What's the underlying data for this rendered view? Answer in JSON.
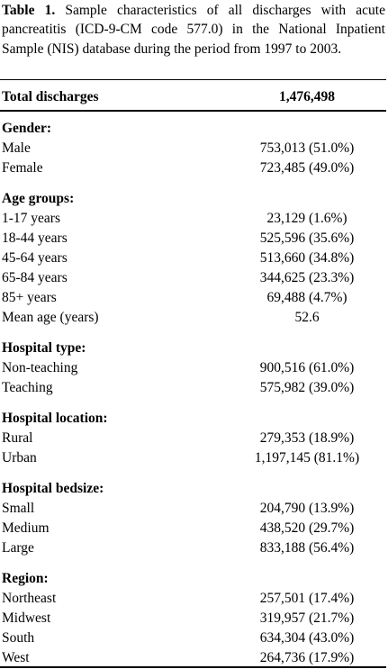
{
  "caption": {
    "label": "Table 1.",
    "text": "Sample characteristics of all discharges with acute pancreatitis (ICD-9-CM code 577.0) in the National Inpatient Sample (NIS) database during the period from 1997 to 2003."
  },
  "table": {
    "header": [
      "Total discharges",
      "1,476,498"
    ],
    "sections": [
      {
        "title": "Gender:",
        "rows": [
          [
            "Male",
            "753,013 (51.0%)"
          ],
          [
            "Female",
            "723,485 (49.0%)"
          ]
        ]
      },
      {
        "title": "Age groups:",
        "rows": [
          [
            "1-17 years",
            "23,129 (1.6%)"
          ],
          [
            "18-44 years",
            "525,596 (35.6%)"
          ],
          [
            "45-64 years",
            "513,660 (34.8%)"
          ],
          [
            "65-84 years",
            "344,625 (23.3%)"
          ],
          [
            "85+ years",
            "69,488 (4.7%)"
          ],
          [
            "Mean age (years)",
            "52.6"
          ]
        ]
      },
      {
        "title": "Hospital type:",
        "rows": [
          [
            "Non-teaching",
            "900,516 (61.0%)"
          ],
          [
            "Teaching",
            "575,982 (39.0%)"
          ]
        ]
      },
      {
        "title": "Hospital location:",
        "rows": [
          [
            "Rural",
            "279,353 (18.9%)"
          ],
          [
            "Urban",
            "1,197,145 (81.1%)"
          ]
        ]
      },
      {
        "title": "Hospital bedsize:",
        "rows": [
          [
            "Small",
            "204,790 (13.9%)"
          ],
          [
            "Medium",
            "438,520 (29.7%)"
          ],
          [
            "Large",
            "833,188 (56.4%)"
          ]
        ]
      },
      {
        "title": "Region:",
        "rows": [
          [
            "Northeast",
            "257,501 (17.4%)"
          ],
          [
            "Midwest",
            "319,957 (21.7%)"
          ],
          [
            "South",
            "634,304 (43.0%)"
          ],
          [
            "West",
            "264,736 (17.9%)"
          ]
        ]
      }
    ]
  }
}
